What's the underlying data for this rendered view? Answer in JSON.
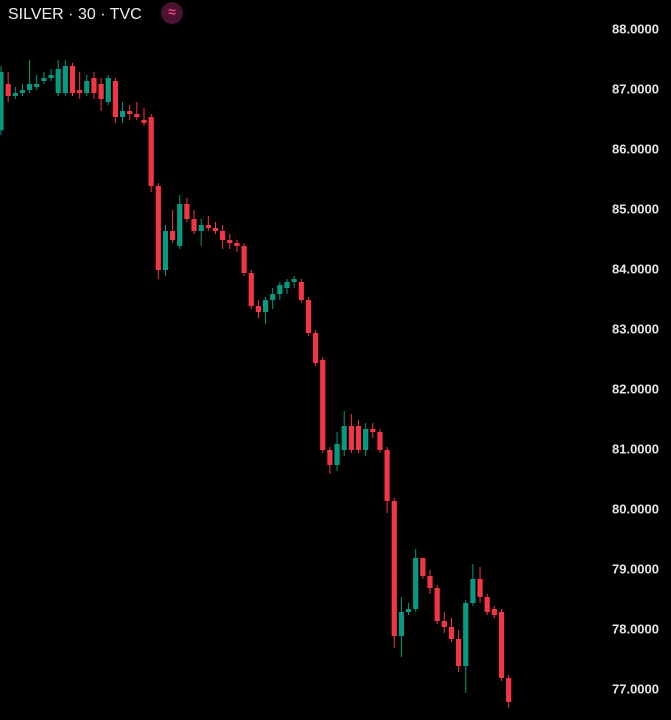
{
  "chart_data": {
    "type": "candlestick",
    "title": "SILVER · 30 · TVC",
    "badge": "≈",
    "up_color": "#089981",
    "down_color": "#f23645",
    "ylim": [
      76.5,
      88.5
    ],
    "yticks": [
      {
        "value": 77,
        "label": "77.0000"
      },
      {
        "value": 78,
        "label": "78.0000"
      },
      {
        "value": 79,
        "label": "79.0000"
      },
      {
        "value": 80,
        "label": "80.0000"
      },
      {
        "value": 81,
        "label": "81.0000"
      },
      {
        "value": 82,
        "label": "82.0000"
      },
      {
        "value": 83,
        "label": "83.0000"
      },
      {
        "value": 84,
        "label": "84.0000"
      },
      {
        "value": 85,
        "label": "85.0000"
      },
      {
        "value": 86,
        "label": "86.0000"
      },
      {
        "value": 87,
        "label": "87.0000"
      },
      {
        "value": 88,
        "label": "88.0000"
      }
    ],
    "open": [
      86.33,
      87.1,
      86.9,
      86.95,
      87.0,
      87.05,
      87.15,
      87.2,
      86.95,
      86.95,
      87.4,
      87.0,
      86.95,
      87.2,
      87.1,
      86.8,
      87.15,
      86.55,
      86.65,
      86.6,
      86.5,
      86.55,
      85.4,
      84.0,
      84.65,
      84.4,
      85.1,
      84.85,
      84.65,
      84.75,
      84.7,
      84.65,
      84.5,
      84.45,
      84.4,
      83.95,
      83.4,
      83.3,
      83.5,
      83.6,
      83.7,
      83.8,
      83.8,
      83.5,
      82.95,
      82.5,
      81.0,
      80.75,
      81.0,
      81.4,
      81.4,
      81.0,
      81.35,
      81.3,
      81.0,
      80.15,
      77.9,
      78.3,
      78.35,
      79.2,
      78.9,
      78.7,
      78.15,
      78.05,
      77.85,
      77.4,
      78.45,
      78.85,
      78.55,
      78.35,
      78.3,
      77.2
    ],
    "high": [
      87.4,
      87.3,
      87.05,
      87.1,
      87.5,
      87.25,
      87.3,
      87.35,
      87.5,
      87.5,
      87.45,
      87.3,
      87.25,
      87.3,
      87.2,
      87.25,
      87.2,
      86.8,
      86.75,
      86.8,
      86.7,
      86.6,
      85.45,
      84.75,
      85.0,
      85.25,
      85.2,
      85.0,
      84.85,
      84.9,
      84.8,
      84.75,
      84.6,
      84.5,
      84.45,
      84.0,
      83.5,
      83.55,
      83.7,
      83.8,
      83.85,
      83.9,
      83.85,
      83.55,
      83.0,
      82.55,
      81.05,
      81.3,
      81.65,
      81.6,
      81.5,
      81.45,
      81.45,
      81.35,
      81.05,
      80.2,
      78.55,
      78.45,
      79.35,
      79.2,
      79.0,
      78.75,
      78.3,
      78.2,
      78.0,
      78.5,
      79.1,
      79.05,
      78.6,
      78.4,
      78.35,
      77.25
    ],
    "low": [
      86.25,
      86.8,
      86.85,
      86.9,
      86.95,
      87.0,
      87.1,
      87.15,
      86.9,
      86.9,
      86.9,
      86.85,
      86.9,
      86.85,
      86.65,
      86.75,
      86.45,
      86.45,
      86.5,
      86.5,
      86.4,
      85.3,
      83.85,
      83.9,
      84.45,
      84.35,
      84.8,
      84.6,
      84.4,
      84.65,
      84.6,
      84.35,
      84.35,
      84.3,
      83.9,
      83.35,
      83.2,
      83.1,
      83.35,
      83.5,
      83.6,
      83.7,
      83.45,
      82.9,
      82.4,
      80.95,
      80.6,
      80.65,
      80.9,
      80.95,
      80.95,
      80.9,
      81.2,
      80.95,
      79.95,
      77.7,
      77.55,
      78.25,
      78.3,
      78.85,
      78.6,
      78.1,
      77.95,
      77.8,
      77.3,
      76.95,
      78.4,
      78.45,
      78.25,
      78.2,
      77.15,
      76.7
    ],
    "close": [
      87.3,
      86.9,
      86.95,
      87.0,
      87.1,
      87.1,
      87.2,
      87.25,
      87.35,
      87.4,
      86.95,
      86.95,
      87.15,
      86.95,
      86.85,
      87.2,
      86.55,
      86.65,
      86.6,
      86.55,
      86.45,
      85.4,
      84.0,
      84.65,
      84.5,
      85.1,
      84.85,
      84.65,
      84.75,
      84.7,
      84.65,
      84.5,
      84.45,
      84.4,
      83.95,
      83.4,
      83.3,
      83.5,
      83.6,
      83.75,
      83.8,
      83.85,
      83.5,
      82.95,
      82.45,
      81.0,
      80.75,
      81.1,
      81.4,
      81.0,
      81.0,
      81.35,
      81.3,
      81.0,
      80.15,
      77.9,
      78.3,
      78.35,
      79.2,
      78.9,
      78.7,
      78.15,
      78.05,
      77.85,
      77.4,
      78.45,
      78.85,
      78.55,
      78.3,
      78.25,
      77.2,
      76.8
    ]
  }
}
